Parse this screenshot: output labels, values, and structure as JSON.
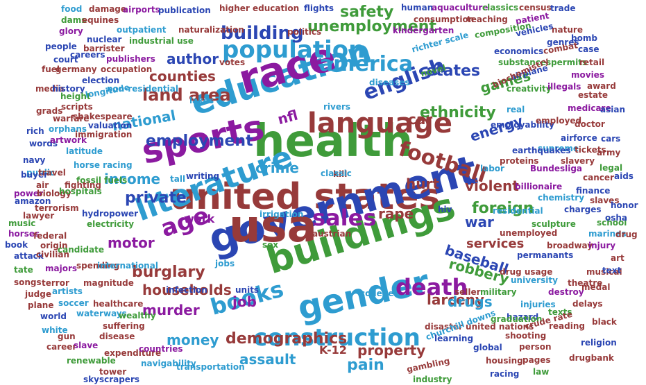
{
  "words": [
    {
      "text": "united states",
      "color": "#973a3a"
    },
    {
      "text": "health",
      "color": "#3f9b3a"
    },
    {
      "text": "government",
      "color": "#2b46b3"
    },
    {
      "text": "education",
      "color": "#2e9cd0"
    },
    {
      "text": "language",
      "color": "#973a3a"
    },
    {
      "text": "usa",
      "color": "#973a3a"
    },
    {
      "text": "race",
      "color": "#8b1aa0"
    },
    {
      "text": "buildings",
      "color": "#3f9b3a"
    },
    {
      "text": "sports",
      "color": "#8b1aa0"
    },
    {
      "text": "gender",
      "color": "#2e9cd0"
    },
    {
      "text": "literature",
      "color": "#2e9cd0"
    },
    {
      "text": "population",
      "color": "#2e9cd0"
    },
    {
      "text": "construction",
      "color": "#2e9cd0"
    },
    {
      "text": "football",
      "color": "#973a3a"
    },
    {
      "text": "english",
      "color": "#2b46b3"
    },
    {
      "text": "america",
      "color": "#2e9cd0"
    },
    {
      "text": "death",
      "color": "#8b1aa0"
    },
    {
      "text": "books",
      "color": "#2e9cd0"
    },
    {
      "text": "age",
      "color": "#8b1aa0"
    },
    {
      "text": "sales",
      "color": "#8b1aa0"
    },
    {
      "text": "unemployment",
      "color": "#3f9b3a"
    },
    {
      "text": "building",
      "color": "#2b46b3"
    },
    {
      "text": "land area",
      "color": "#973a3a"
    },
    {
      "text": "demographics",
      "color": "#973a3a"
    },
    {
      "text": "ethnicity",
      "color": "#3f9b3a"
    },
    {
      "text": "employment",
      "color": "#2b46b3"
    },
    {
      "text": "national",
      "color": "#2e9cd0"
    },
    {
      "text": "income",
      "color": "#2e9cd0"
    },
    {
      "text": "games",
      "color": "#3f9b3a"
    },
    {
      "text": "foreign",
      "color": "#3f9b3a"
    },
    {
      "text": "households",
      "color": "#973a3a"
    },
    {
      "text": "baseball",
      "color": "#2b46b3"
    },
    {
      "text": "author",
      "color": "#2b46b3"
    },
    {
      "text": "counties",
      "color": "#973a3a"
    },
    {
      "text": "energy",
      "color": "#2b46b3"
    },
    {
      "text": "states",
      "color": "#2b46b3"
    },
    {
      "text": "safety",
      "color": "#3f9b3a"
    },
    {
      "text": "private",
      "color": "#2b46b3"
    },
    {
      "text": "larceny",
      "color": "#973a3a"
    },
    {
      "text": "robbery",
      "color": "#3f9b3a"
    },
    {
      "text": "murder",
      "color": "#8b1aa0"
    },
    {
      "text": "violent",
      "color": "#973a3a"
    },
    {
      "text": "services",
      "color": "#973a3a"
    },
    {
      "text": "burglary",
      "color": "#973a3a"
    },
    {
      "text": "money",
      "color": "#2e9cd0"
    },
    {
      "text": "property",
      "color": "#973a3a"
    },
    {
      "text": "drugs",
      "color": "#2e9cd0"
    },
    {
      "text": "crime",
      "color": "#2e9cd0"
    },
    {
      "text": "hurt",
      "color": "#973a3a"
    },
    {
      "text": "motor",
      "color": "#8b1aa0"
    },
    {
      "text": "rape",
      "color": "#973a3a"
    },
    {
      "text": "assault",
      "color": "#2e9cd0"
    },
    {
      "text": "pain",
      "color": "#2e9cd0"
    },
    {
      "text": "job",
      "color": "#8b1aa0"
    },
    {
      "text": "work",
      "color": "#8b1aa0"
    },
    {
      "text": "war",
      "color": "#2b46b3"
    },
    {
      "text": "nfl",
      "color": "#8b1aa0"
    },
    {
      "text": "car",
      "color": "#973a3a"
    },
    {
      "text": "K-12",
      "color": "#973a3a"
    },
    {
      "text": "food",
      "color": "#2e9cd0"
    },
    {
      "text": "damage",
      "color": "#973a3a"
    },
    {
      "text": "airports",
      "color": "#8b1aa0"
    },
    {
      "text": "publication",
      "color": "#2b46b3"
    },
    {
      "text": "higher education",
      "color": "#973a3a"
    },
    {
      "text": "flights",
      "color": "#2b46b3"
    },
    {
      "text": "human",
      "color": "#2b46b3"
    },
    {
      "text": "aquaculture",
      "color": "#8b1aa0"
    },
    {
      "text": "classics",
      "color": "#3f9b3a"
    },
    {
      "text": "census",
      "color": "#973a3a"
    },
    {
      "text": "trade",
      "color": "#2b46b3"
    },
    {
      "text": "dams",
      "color": "#3f9b3a"
    },
    {
      "text": "equines",
      "color": "#973a3a"
    },
    {
      "text": "consumption",
      "color": "#973a3a"
    },
    {
      "text": "teaching",
      "color": "#973a3a"
    },
    {
      "text": "patient",
      "color": "#8b1aa0"
    },
    {
      "text": "glory",
      "color": "#8b1aa0"
    },
    {
      "text": "outpatient",
      "color": "#2e9cd0"
    },
    {
      "text": "naturalization",
      "color": "#973a3a"
    },
    {
      "text": "kindergarten",
      "color": "#8b1aa0"
    },
    {
      "text": "composition",
      "color": "#3f9b3a"
    },
    {
      "text": "vehicles",
      "color": "#2b46b3"
    },
    {
      "text": "nature",
      "color": "#973a3a"
    },
    {
      "text": "nuclear",
      "color": "#2b46b3"
    },
    {
      "text": "industrial use",
      "color": "#3f9b3a"
    },
    {
      "text": "politics",
      "color": "#973a3a"
    },
    {
      "text": "genres",
      "color": "#2b46b3"
    },
    {
      "text": "bomb",
      "color": "#2b46b3"
    },
    {
      "text": "people",
      "color": "#2b46b3"
    },
    {
      "text": "barrister",
      "color": "#973a3a"
    },
    {
      "text": "richter scale",
      "color": "#2e9cd0"
    },
    {
      "text": "economics",
      "color": "#2b46b3"
    },
    {
      "text": "combat",
      "color": "#973a3a"
    },
    {
      "text": "case",
      "color": "#2b46b3"
    },
    {
      "text": "court",
      "color": "#2b46b3"
    },
    {
      "text": "careers",
      "color": "#2b46b3"
    },
    {
      "text": "publishers",
      "color": "#8b1aa0"
    },
    {
      "text": "substances",
      "color": "#3f9b3a"
    },
    {
      "text": "permits",
      "color": "#3f9b3a"
    },
    {
      "text": "retail",
      "color": "#973a3a"
    },
    {
      "text": "fuel",
      "color": "#973a3a"
    },
    {
      "text": "germany",
      "color": "#973a3a"
    },
    {
      "text": "occupation",
      "color": "#973a3a"
    },
    {
      "text": "votes",
      "color": "#973a3a"
    },
    {
      "text": "novel",
      "color": "#3f9b3a"
    },
    {
      "text": "airplane",
      "color": "#2b46b3"
    },
    {
      "text": "movies",
      "color": "#8b1aa0"
    },
    {
      "text": "election",
      "color": "#2b46b3"
    },
    {
      "text": "award",
      "color": "#973a3a"
    },
    {
      "text": "media",
      "color": "#973a3a"
    },
    {
      "text": "history",
      "color": "#2b46b3"
    },
    {
      "text": "non-residential",
      "color": "#2e9cd0"
    },
    {
      "text": "diseases",
      "color": "#2e9cd0"
    },
    {
      "text": "biochemistry",
      "color": "#973a3a"
    },
    {
      "text": "creativity",
      "color": "#3f9b3a"
    },
    {
      "text": "illegals",
      "color": "#8b1aa0"
    },
    {
      "text": "estate",
      "color": "#973a3a"
    },
    {
      "text": "height",
      "color": "#3f9b3a"
    },
    {
      "text": "longitude",
      "color": "#2e9cd0"
    },
    {
      "text": "grads",
      "color": "#973a3a"
    },
    {
      "text": "scripts",
      "color": "#973a3a"
    },
    {
      "text": "lakes",
      "color": "#2e9cd0"
    },
    {
      "text": "rivers",
      "color": "#2e9cd0"
    },
    {
      "text": "medicare",
      "color": "#8b1aa0"
    },
    {
      "text": "asian",
      "color": "#2b46b3"
    },
    {
      "text": "warfare",
      "color": "#973a3a"
    },
    {
      "text": "shakespeare",
      "color": "#973a3a"
    },
    {
      "text": "real",
      "color": "#2e9cd0"
    },
    {
      "text": "rich",
      "color": "#2b46b3"
    },
    {
      "text": "orphans",
      "color": "#2e9cd0"
    },
    {
      "text": "valuation",
      "color": "#2b46b3"
    },
    {
      "text": "employability",
      "color": "#2b46b3"
    },
    {
      "text": "employed",
      "color": "#973a3a"
    },
    {
      "text": "doctor",
      "color": "#973a3a"
    },
    {
      "text": "words",
      "color": "#2b46b3"
    },
    {
      "text": "artwork",
      "color": "#8b1aa0"
    },
    {
      "text": "immigration",
      "color": "#973a3a"
    },
    {
      "text": "airforce",
      "color": "#2b46b3"
    },
    {
      "text": "cars",
      "color": "#2b46b3"
    },
    {
      "text": "supreme",
      "color": "#2e9cd0"
    },
    {
      "text": "navy",
      "color": "#2b46b3"
    },
    {
      "text": "public",
      "color": "#2e9cd0"
    },
    {
      "text": "latitude",
      "color": "#2e9cd0"
    },
    {
      "text": "horse racing",
      "color": "#2e9cd0"
    },
    {
      "text": "earthquakes",
      "color": "#2b46b3"
    },
    {
      "text": "tickets",
      "color": "#973a3a"
    },
    {
      "text": "army",
      "color": "#973a3a"
    },
    {
      "text": "proteins",
      "color": "#973a3a"
    },
    {
      "text": "slavery",
      "color": "#973a3a"
    },
    {
      "text": "buyer",
      "color": "#2b46b3"
    },
    {
      "text": "air",
      "color": "#973a3a"
    },
    {
      "text": "travel",
      "color": "#973a3a"
    },
    {
      "text": "fossil fuels",
      "color": "#3f9b3a"
    },
    {
      "text": "kill",
      "color": "#973a3a"
    },
    {
      "text": "labor",
      "color": "#2e9cd0"
    },
    {
      "text": "Bundesliga",
      "color": "#8b1aa0"
    },
    {
      "text": "legal",
      "color": "#3f9b3a"
    },
    {
      "text": "fighting",
      "color": "#973a3a"
    },
    {
      "text": "tall",
      "color": "#2e9cd0"
    },
    {
      "text": "writing",
      "color": "#2b46b3"
    },
    {
      "text": "classic",
      "color": "#2e9cd0"
    },
    {
      "text": "cancer",
      "color": "#973a3a"
    },
    {
      "text": "aids",
      "color": "#2b46b3"
    },
    {
      "text": "power",
      "color": "#8b1aa0"
    },
    {
      "text": "biology",
      "color": "#973a3a"
    },
    {
      "text": "hospitals",
      "color": "#3f9b3a"
    },
    {
      "text": "billionaire",
      "color": "#8b1aa0"
    },
    {
      "text": "amazon",
      "color": "#2b46b3"
    },
    {
      "text": "terrorism",
      "color": "#973a3a"
    },
    {
      "text": "chemistry",
      "color": "#2e9cd0"
    },
    {
      "text": "finance",
      "color": "#2b46b3"
    },
    {
      "text": "slaves",
      "color": "#973a3a"
    },
    {
      "text": "lawyer",
      "color": "#973a3a"
    },
    {
      "text": "hydropower",
      "color": "#2b46b3"
    },
    {
      "text": "hiv",
      "color": "#2b46b3"
    },
    {
      "text": "residential",
      "color": "#2e9cd0"
    },
    {
      "text": "charges",
      "color": "#2b46b3"
    },
    {
      "text": "honor",
      "color": "#2b46b3"
    },
    {
      "text": "music",
      "color": "#3f9b3a"
    },
    {
      "text": "electricity",
      "color": "#3f9b3a"
    },
    {
      "text": "irrigation",
      "color": "#2e9cd0"
    },
    {
      "text": "sculpture",
      "color": "#3f9b3a"
    },
    {
      "text": "school",
      "color": "#3f9b3a"
    },
    {
      "text": "osha",
      "color": "#2b46b3"
    },
    {
      "text": "horses",
      "color": "#8b1aa0"
    },
    {
      "text": "federal",
      "color": "#973a3a"
    },
    {
      "text": "austrian",
      "color": "#973a3a"
    },
    {
      "text": "marines",
      "color": "#2e9cd0"
    },
    {
      "text": "drug",
      "color": "#973a3a"
    },
    {
      "text": "book",
      "color": "#2b46b3"
    },
    {
      "text": "origin",
      "color": "#973a3a"
    },
    {
      "text": "candidate",
      "color": "#3f9b3a"
    },
    {
      "text": "sex",
      "color": "#3f9b3a"
    },
    {
      "text": "unemployed",
      "color": "#973a3a"
    },
    {
      "text": "broadway",
      "color": "#973a3a"
    },
    {
      "text": "injury",
      "color": "#8b1aa0"
    },
    {
      "text": "attack",
      "color": "#2b46b3"
    },
    {
      "text": "civilian",
      "color": "#973a3a"
    },
    {
      "text": "permanants",
      "color": "#2b46b3"
    },
    {
      "text": "art",
      "color": "#973a3a"
    },
    {
      "text": "tate",
      "color": "#3f9b3a"
    },
    {
      "text": "majors",
      "color": "#8b1aa0"
    },
    {
      "text": "spending",
      "color": "#973a3a"
    },
    {
      "text": "international",
      "color": "#2e9cd0"
    },
    {
      "text": "jobs",
      "color": "#2e9cd0"
    },
    {
      "text": "drug usage",
      "color": "#973a3a"
    },
    {
      "text": "musical",
      "color": "#973a3a"
    },
    {
      "text": "text",
      "color": "#2b46b3"
    },
    {
      "text": "songs",
      "color": "#973a3a"
    },
    {
      "text": "terror",
      "color": "#973a3a"
    },
    {
      "text": "magnitude",
      "color": "#973a3a"
    },
    {
      "text": "university",
      "color": "#2e9cd0"
    },
    {
      "text": "theatre",
      "color": "#973a3a"
    },
    {
      "text": "judge",
      "color": "#973a3a"
    },
    {
      "text": "artists",
      "color": "#2e9cd0"
    },
    {
      "text": "infection",
      "color": "#2b46b3"
    },
    {
      "text": "seller",
      "color": "#973a3a"
    },
    {
      "text": "military",
      "color": "#3f9b3a"
    },
    {
      "text": "destroy",
      "color": "#8b1aa0"
    },
    {
      "text": "medal",
      "color": "#973a3a"
    },
    {
      "text": "plane",
      "color": "#973a3a"
    },
    {
      "text": "soccer",
      "color": "#2e9cd0"
    },
    {
      "text": "healthcare",
      "color": "#973a3a"
    },
    {
      "text": "units",
      "color": "#2b46b3"
    },
    {
      "text": "college",
      "color": "#2e9cd0"
    },
    {
      "text": "injuries",
      "color": "#2e9cd0"
    },
    {
      "text": "delays",
      "color": "#973a3a"
    },
    {
      "text": "world",
      "color": "#2b46b3"
    },
    {
      "text": "waterways",
      "color": "#2e9cd0"
    },
    {
      "text": "wealthy",
      "color": "#3f9b3a"
    },
    {
      "text": "hazard",
      "color": "#2b46b3"
    },
    {
      "text": "texts",
      "color": "#3f9b3a"
    },
    {
      "text": "white",
      "color": "#2e9cd0"
    },
    {
      "text": "suffering",
      "color": "#973a3a"
    },
    {
      "text": "graduation",
      "color": "#3f9b3a"
    },
    {
      "text": "reading",
      "color": "#973a3a"
    },
    {
      "text": "gun",
      "color": "#973a3a"
    },
    {
      "text": "disease",
      "color": "#973a3a"
    },
    {
      "text": "disaster united nations",
      "color": "#973a3a"
    },
    {
      "text": "crude rate",
      "color": "#973a3a"
    },
    {
      "text": "black",
      "color": "#973a3a"
    },
    {
      "text": "career",
      "color": "#973a3a"
    },
    {
      "text": "slave",
      "color": "#8b1aa0"
    },
    {
      "text": "churchill downs",
      "color": "#2e9cd0"
    },
    {
      "text": "learning",
      "color": "#2b46b3"
    },
    {
      "text": "shooting",
      "color": "#973a3a"
    },
    {
      "text": "person",
      "color": "#973a3a"
    },
    {
      "text": "religion",
      "color": "#2b46b3"
    },
    {
      "text": "expenditure",
      "color": "#973a3a"
    },
    {
      "text": "countries",
      "color": "#8b1aa0"
    },
    {
      "text": "global",
      "color": "#2b46b3"
    },
    {
      "text": "renewable",
      "color": "#3f9b3a"
    },
    {
      "text": "navigability",
      "color": "#2e9cd0"
    },
    {
      "text": "transportation",
      "color": "#2e9cd0"
    },
    {
      "text": "gambling",
      "color": "#973a3a"
    },
    {
      "text": "housing",
      "color": "#973a3a"
    },
    {
      "text": "pages",
      "color": "#973a3a"
    },
    {
      "text": "drugbank",
      "color": "#973a3a"
    },
    {
      "text": "tower",
      "color": "#973a3a"
    },
    {
      "text": "skyscrapers",
      "color": "#2b46b3"
    },
    {
      "text": "industry",
      "color": "#3f9b3a"
    },
    {
      "text": "racing",
      "color": "#2b46b3"
    },
    {
      "text": "law",
      "color": "#3f9b3a"
    }
  ]
}
